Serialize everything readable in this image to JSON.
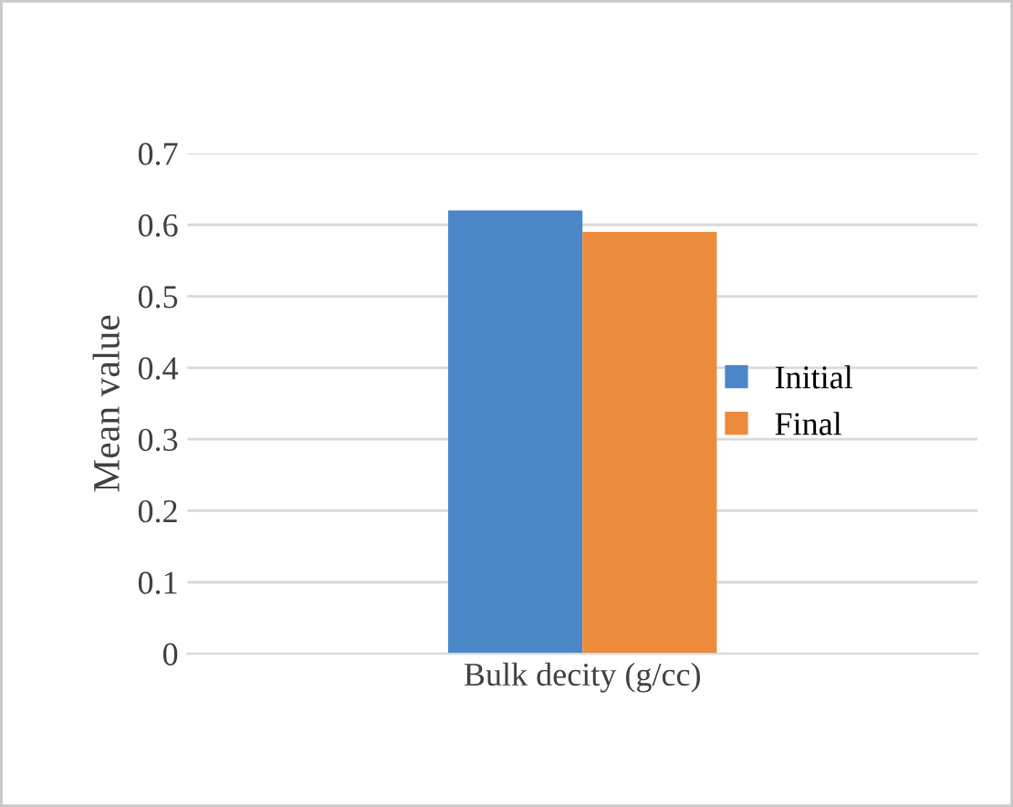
{
  "chart_data": {
    "type": "bar",
    "ylabel": "Mean value",
    "categories": [
      "Bulk decity (g/cc)"
    ],
    "series": [
      {
        "name": "Initial",
        "color": "#4a86c8",
        "values": [
          0.62
        ]
      },
      {
        "name": "Final",
        "color": "#ec8b3c",
        "values": [
          0.59
        ]
      }
    ],
    "ylim": [
      0,
      0.7
    ],
    "yticks": [
      0,
      0.1,
      0.2,
      0.3,
      0.4,
      0.5,
      0.6,
      0.7
    ],
    "grid": "y",
    "legend": "right"
  }
}
